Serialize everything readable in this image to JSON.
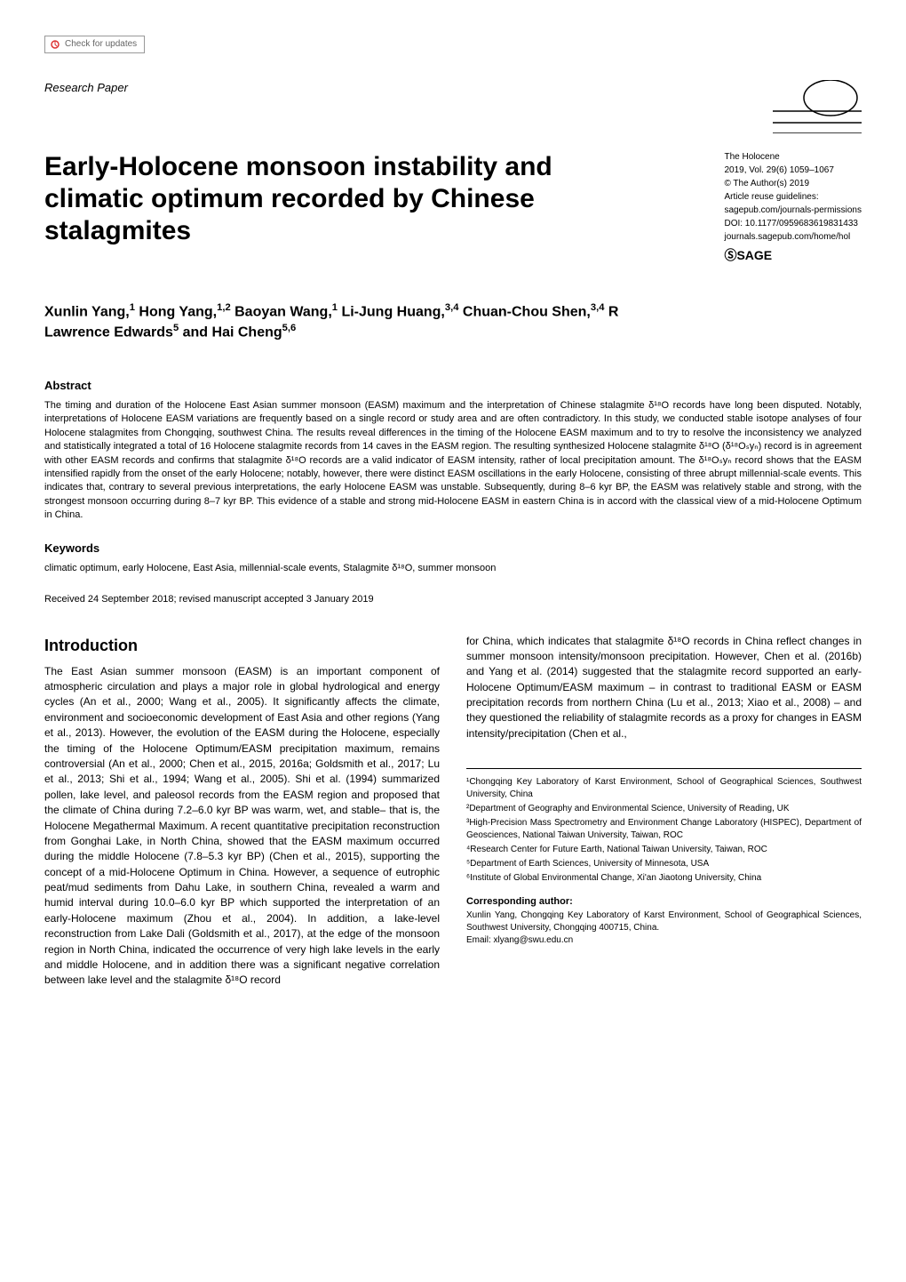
{
  "check_updates": {
    "label": "Check for updates"
  },
  "header": {
    "section_label": "Research Paper",
    "hol_logo": {
      "stroke": "#000000",
      "stroke_width": 1.5
    }
  },
  "title": "Early-Holocene monsoon instability and climatic optimum recorded by Chinese stalagmites",
  "meta": {
    "journal": "The Holocene",
    "citation": "2019, Vol. 29(6) 1059–1067",
    "copyright": "© The Author(s) 2019",
    "reuse": "Article reuse guidelines:",
    "reuse_link": "sagepub.com/journals-permissions",
    "doi": "DOI: 10.1177/0959683619831433",
    "journal_link": "journals.sagepub.com/home/hol",
    "publisher": "SAGE"
  },
  "authors_html": "Xunlin Yang,<sup>1</sup> Hong Yang,<sup>1,2</sup> Baoyan Wang,<sup>1</sup> Li-Jung Huang,<sup>3,4</sup> Chuan-Chou Shen,<sup>3,4</sup> R Lawrence Edwards<sup>5</sup> and Hai Cheng<sup>5,6</sup>",
  "abstract": {
    "heading": "Abstract",
    "text": "The timing and duration of the Holocene East Asian summer monsoon (EASM) maximum and the interpretation of Chinese stalagmite δ¹⁸O records have long been disputed. Notably, interpretations of Holocene EASM variations are frequently based on a single record or study area and are often contradictory. In this study, we conducted stable isotope analyses of four Holocene stalagmites from Chongqing, southwest China. The results reveal differences in the timing of the Holocene EASM maximum and to try to resolve the inconsistency we analyzed and statistically integrated a total of 16 Holocene stalagmite records from 14 caves in the EASM region. The resulting synthesized Holocene stalagmite δ¹⁸O (δ¹⁸Oₛyₙ) record is in agreement with other EASM records and confirms that stalagmite δ¹⁸O records are a valid indicator of EASM intensity, rather of local precipitation amount. The δ¹⁸Oₛyₙ record shows that the EASM intensified rapidly from the onset of the early Holocene; notably, however, there were distinct EASM oscillations in the early Holocene, consisting of three abrupt millennial-scale events. This indicates that, contrary to several previous interpretations, the early Holocene EASM was unstable. Subsequently, during 8–6 kyr BP, the EASM was relatively stable and strong, with the strongest monsoon occurring during 8–7 kyr BP. This evidence of a stable and strong mid-Holocene EASM in eastern China is in accord with the classical view of a mid-Holocene Optimum in China."
  },
  "keywords": {
    "heading": "Keywords",
    "text": "climatic optimum, early Holocene, East Asia, millennial-scale events, Stalagmite δ¹⁸O, summer monsoon"
  },
  "received": "Received 24 September 2018; revised manuscript accepted 3 January 2019",
  "introduction": {
    "heading": "Introduction",
    "col1": "The East Asian summer monsoon (EASM) is an important component of atmospheric circulation and plays a major role in global hydrological and energy cycles (An et al., 2000; Wang et al., 2005). It significantly affects the climate, environment and socioeconomic development of East Asia and other regions (Yang et al., 2013). However, the evolution of the EASM during the Holocene, especially the timing of the Holocene Optimum/EASM precipitation maximum, remains controversial (An et al., 2000; Chen et al., 2015, 2016a; Goldsmith et al., 2017; Lu et al., 2013; Shi et al., 1994; Wang et al., 2005). Shi et al. (1994) summarized pollen, lake level, and paleosol records from the EASM region and proposed that the climate of China during 7.2–6.0 kyr BP was warm, wet, and stable– that is, the Holocene Megathermal Maximum. A recent quantitative precipitation reconstruction from Gonghai Lake, in North China, showed that the EASM maximum occurred during the middle Holocene (7.8–5.3 kyr BP) (Chen et al., 2015), supporting the concept of a mid-Holocene Optimum in China. However, a sequence of eutrophic peat/mud sediments from Dahu Lake, in southern China, revealed a warm and humid interval during 10.0–6.0 kyr BP which supported the interpretation of an early-Holocene maximum (Zhou et al., 2004). In addition, a lake-level reconstruction from Lake Dali (Goldsmith et al., 2017), at the edge of the monsoon region in North China, indicated the occurrence of very high lake levels in the early and middle Holocene, and in addition there was a significant negative correlation between lake level and the stalagmite δ¹⁸O record",
    "col2": "for China, which indicates that stalagmite δ¹⁸O records in China reflect changes in summer monsoon intensity/monsoon precipitation. However, Chen et al. (2016b) and Yang et al. (2014) suggested that the stalagmite record supported an early-Holocene Optimum/EASM maximum – in contrast to traditional EASM or EASM precipitation records from northern China (Lu et al., 2013; Xiao et al., 2008) – and they questioned the reliability of stalagmite records as a proxy for changes in EASM intensity/precipitation (Chen et al.,"
  },
  "affiliations": [
    "¹Chongqing Key Laboratory of Karst Environment, School of Geographical Sciences, Southwest University, China",
    "²Department of Geography and Environmental Science, University of Reading, UK",
    "³High-Precision Mass Spectrometry and Environment Change Laboratory (HISPEC), Department of Geosciences, National Taiwan University, Taiwan, ROC",
    "⁴Research Center for Future Earth, National Taiwan University, Taiwan, ROC",
    "⁵Department of Earth Sciences, University of Minnesota, USA",
    "⁶Institute of Global Environmental Change, Xi'an Jiaotong University, China"
  ],
  "corresponding": {
    "heading": "Corresponding author:",
    "text": "Xunlin Yang, Chongqing Key Laboratory of Karst Environment, School of Geographical Sciences, Southwest University, Chongqing 400715, China.",
    "email": "Email: xlyang@swu.edu.cn"
  }
}
